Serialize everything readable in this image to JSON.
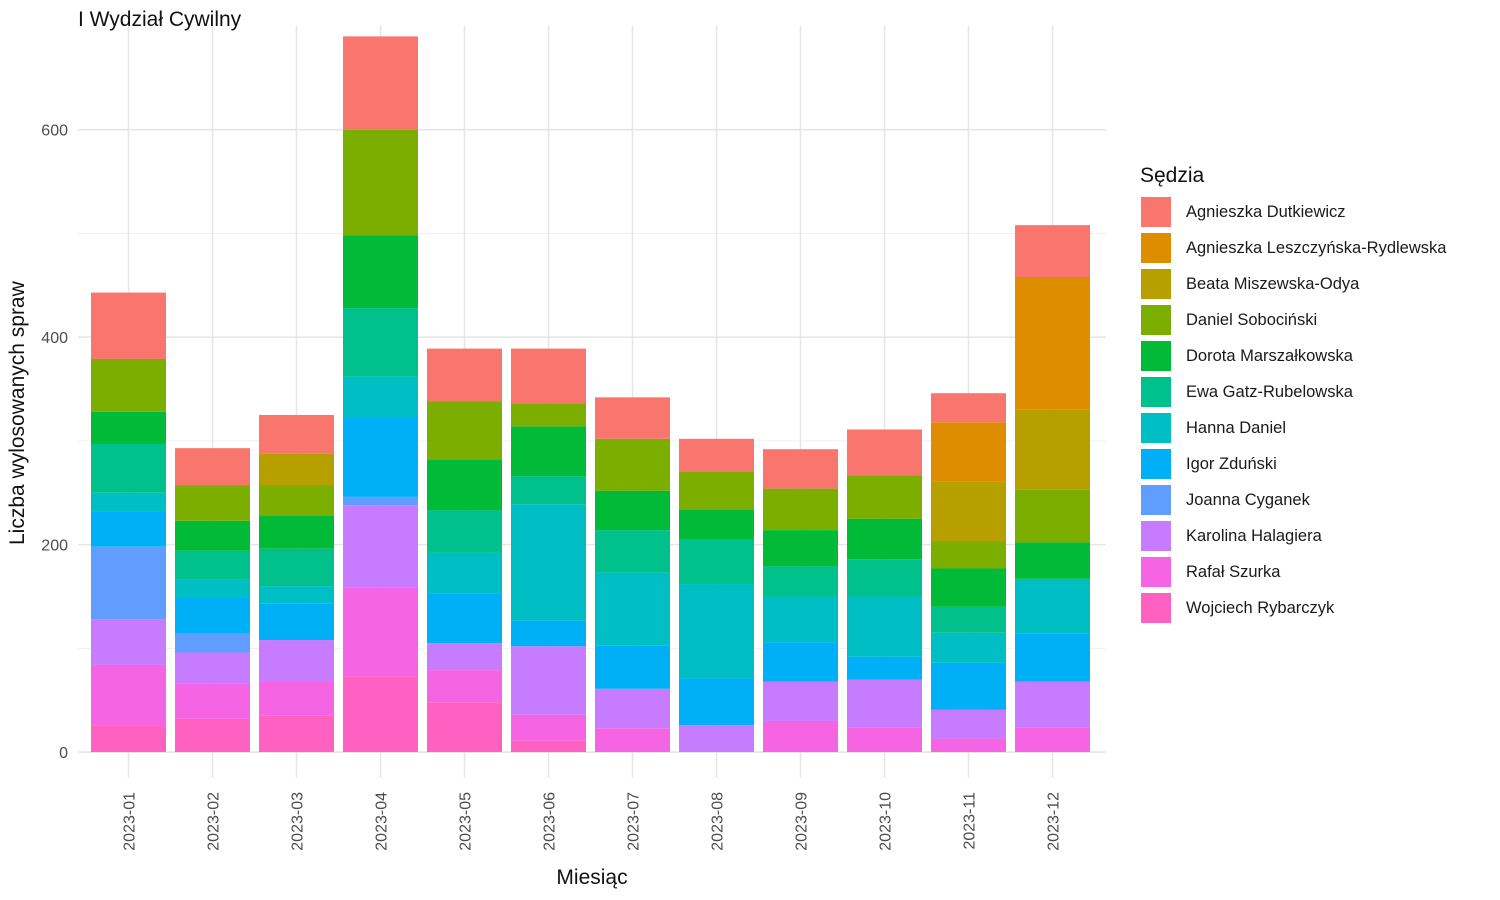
{
  "title": "I Wydział Cywilny",
  "chart_data": {
    "type": "bar",
    "stacked": true,
    "xlabel": "Miesiąc",
    "ylabel": "Liczba wylosowanych spraw",
    "ylim": [
      -25,
      700
    ],
    "yticks": [
      0,
      200,
      400,
      600
    ],
    "grid": true,
    "legend_position": "right",
    "legend_title": "Sędzia",
    "categories": [
      "2023-01",
      "2023-02",
      "2023-03",
      "2023-04",
      "2023-05",
      "2023-06",
      "2023-07",
      "2023-08",
      "2023-09",
      "2023-10",
      "2023-11",
      "2023-12"
    ],
    "series": [
      {
        "name": "Wojciech Rybarczyk",
        "color": "#FF61C3",
        "values": [
          26,
          32,
          35,
          73,
          48,
          11,
          0,
          0,
          0,
          0,
          0,
          0
        ]
      },
      {
        "name": "Rafał Szurka",
        "color": "#F564E3",
        "values": [
          58,
          34,
          33,
          86,
          31,
          25,
          23,
          0,
          30,
          24,
          13,
          24
        ]
      },
      {
        "name": "Karolina Halagiera",
        "color": "#C77CFF",
        "values": [
          44,
          30,
          40,
          79,
          26,
          66,
          38,
          26,
          38,
          46,
          28,
          44
        ]
      },
      {
        "name": "Joanna Cyganek",
        "color": "#619CFF",
        "values": [
          70,
          18,
          0,
          8,
          0,
          0,
          0,
          0,
          0,
          0,
          0,
          0
        ]
      },
      {
        "name": "Igor Zduński",
        "color": "#00B0F6",
        "values": [
          34,
          35,
          35,
          77,
          48,
          25,
          42,
          45,
          38,
          22,
          45,
          46
        ]
      },
      {
        "name": "Hanna Daniel",
        "color": "#00BFC4",
        "values": [
          18,
          17,
          17,
          39,
          39,
          112,
          70,
          91,
          44,
          58,
          29,
          53
        ]
      },
      {
        "name": "Ewa Gatz-Rubelowska",
        "color": "#00C08B",
        "values": [
          47,
          28,
          36,
          66,
          41,
          27,
          41,
          43,
          29,
          36,
          25,
          0
        ]
      },
      {
        "name": "Dorota Marszałkowska",
        "color": "#00BA38",
        "values": [
          31,
          29,
          32,
          70,
          49,
          48,
          38,
          29,
          35,
          39,
          37,
          35
        ]
      },
      {
        "name": "Daniel Sobociński",
        "color": "#7CAE00",
        "values": [
          51,
          34,
          29,
          102,
          56,
          22,
          50,
          36,
          40,
          42,
          26,
          51
        ]
      },
      {
        "name": "Beata Miszewska-Odya",
        "color": "#B79F00",
        "values": [
          0,
          0,
          31,
          0,
          0,
          0,
          0,
          0,
          0,
          0,
          58,
          77
        ]
      },
      {
        "name": "Agnieszka Leszczyńska-Rydlewska",
        "color": "#DE8C00",
        "values": [
          0,
          0,
          0,
          0,
          0,
          0,
          0,
          0,
          0,
          0,
          57,
          128
        ]
      },
      {
        "name": "Agnieszka Dutkiewicz",
        "color": "#F8766D",
        "values": [
          64,
          36,
          37,
          90,
          51,
          53,
          40,
          32,
          38,
          44,
          28,
          50
        ]
      }
    ]
  },
  "legend_items": [
    {
      "label": "Agnieszka Dutkiewicz",
      "color": "#F8766D"
    },
    {
      "label": "Agnieszka Leszczyńska-Rydlewska",
      "color": "#DE8C00"
    },
    {
      "label": "Beata Miszewska-Odya",
      "color": "#B79F00"
    },
    {
      "label": "Daniel Sobociński",
      "color": "#7CAE00"
    },
    {
      "label": "Dorota Marszałkowska",
      "color": "#00BA38"
    },
    {
      "label": "Ewa Gatz-Rubelowska",
      "color": "#00C08B"
    },
    {
      "label": "Hanna Daniel",
      "color": "#00BFC4"
    },
    {
      "label": "Igor Zduński",
      "color": "#00B0F6"
    },
    {
      "label": "Joanna Cyganek",
      "color": "#619CFF"
    },
    {
      "label": "Karolina Halagiera",
      "color": "#C77CFF"
    },
    {
      "label": "Rafał Szurka",
      "color": "#F564E3"
    },
    {
      "label": "Wojciech Rybarczyk",
      "color": "#FF61C3"
    }
  ]
}
